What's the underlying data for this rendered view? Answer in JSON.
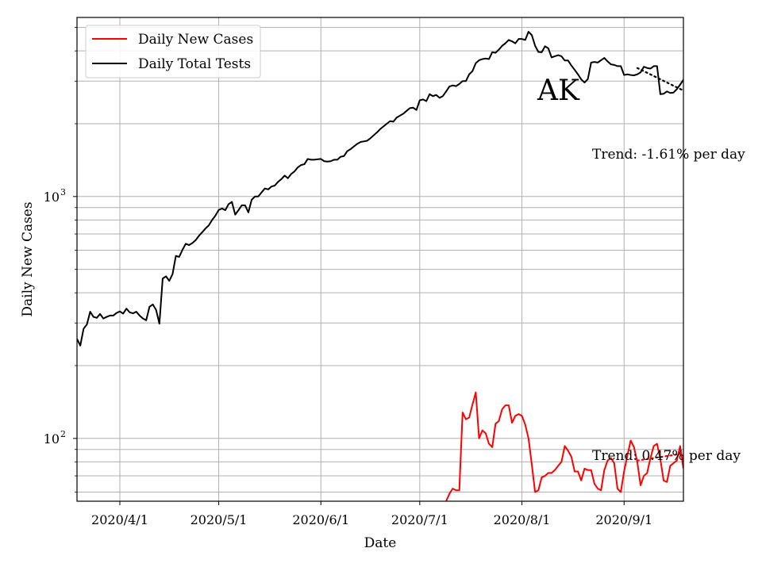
{
  "chart_data": {
    "type": "line",
    "title": "",
    "xlabel": "Date",
    "ylabel": "Daily New Cases",
    "yscale": "log",
    "ylim": [
      55,
      5500
    ],
    "xlim": [
      "2020-03-19",
      "2020-09-19"
    ],
    "grid": true,
    "legend_position": "top-left",
    "x_ticks": [
      {
        "date": "2020-04-01",
        "label": "2020/4/1"
      },
      {
        "date": "2020-05-01",
        "label": "2020/5/1"
      },
      {
        "date": "2020-06-01",
        "label": "2020/6/1"
      },
      {
        "date": "2020-07-01",
        "label": "2020/7/1"
      },
      {
        "date": "2020-08-01",
        "label": "2020/8/1"
      },
      {
        "date": "2020-09-01",
        "label": "2020/9/1"
      }
    ],
    "y_major_ticks": [
      {
        "value": 100,
        "label": "10",
        "exp": "2"
      },
      {
        "value": 1000,
        "label": "10",
        "exp": "3"
      }
    ],
    "y_minor_ticks": [
      60,
      70,
      80,
      90,
      200,
      300,
      400,
      500,
      600,
      700,
      800,
      900,
      2000,
      3000,
      4000,
      5000
    ],
    "state_label": "AK",
    "annotations": [
      {
        "text": "Trend: -1.61% per day",
        "series": "tests"
      },
      {
        "text": "Trend: 0.47% per day",
        "series": "cases"
      }
    ],
    "series": [
      {
        "key": "cases",
        "name": "Daily New Cases",
        "color": "#ff0000",
        "points": [
          [
            "2020-07-09",
            55
          ],
          [
            "2020-07-10",
            59
          ],
          [
            "2020-07-11",
            62
          ],
          [
            "2020-07-12",
            61
          ],
          [
            "2020-07-13",
            61
          ],
          [
            "2020-07-14",
            128
          ],
          [
            "2020-07-15",
            120
          ],
          [
            "2020-07-16",
            122
          ],
          [
            "2020-07-17",
            138
          ],
          [
            "2020-07-18",
            155
          ],
          [
            "2020-07-19",
            100
          ],
          [
            "2020-07-20",
            108
          ],
          [
            "2020-07-21",
            105
          ],
          [
            "2020-07-22",
            95
          ],
          [
            "2020-07-23",
            92
          ],
          [
            "2020-07-24",
            115
          ],
          [
            "2020-07-25",
            118
          ],
          [
            "2020-07-26",
            132
          ],
          [
            "2020-07-27",
            137
          ],
          [
            "2020-07-28",
            137
          ],
          [
            "2020-07-29",
            116
          ],
          [
            "2020-07-30",
            124
          ],
          [
            "2020-07-31",
            126
          ],
          [
            "2020-08-01",
            124
          ],
          [
            "2020-08-02",
            114
          ],
          [
            "2020-08-03",
            100
          ],
          [
            "2020-08-04",
            78
          ],
          [
            "2020-08-05",
            60
          ],
          [
            "2020-08-06",
            61
          ],
          [
            "2020-08-07",
            69
          ],
          [
            "2020-08-08",
            70
          ],
          [
            "2020-08-09",
            72
          ],
          [
            "2020-08-10",
            72
          ],
          [
            "2020-08-11",
            74
          ],
          [
            "2020-08-12",
            77
          ],
          [
            "2020-08-13",
            80
          ],
          [
            "2020-08-14",
            93
          ],
          [
            "2020-08-15",
            89
          ],
          [
            "2020-08-16",
            84
          ],
          [
            "2020-08-17",
            73
          ],
          [
            "2020-08-18",
            73
          ],
          [
            "2020-08-19",
            67
          ],
          [
            "2020-08-20",
            75
          ],
          [
            "2020-08-21",
            74
          ],
          [
            "2020-08-22",
            74
          ],
          [
            "2020-08-23",
            65
          ],
          [
            "2020-08-24",
            62
          ],
          [
            "2020-08-25",
            61
          ],
          [
            "2020-08-26",
            74
          ],
          [
            "2020-08-27",
            81
          ],
          [
            "2020-08-28",
            83
          ],
          [
            "2020-08-29",
            79
          ],
          [
            "2020-08-30",
            62
          ],
          [
            "2020-08-31",
            60
          ],
          [
            "2020-09-01",
            73
          ],
          [
            "2020-09-02",
            85
          ],
          [
            "2020-09-03",
            98
          ],
          [
            "2020-09-04",
            92
          ],
          [
            "2020-09-05",
            80
          ],
          [
            "2020-09-06",
            64
          ],
          [
            "2020-09-07",
            70
          ],
          [
            "2020-09-08",
            72
          ],
          [
            "2020-09-09",
            83
          ],
          [
            "2020-09-10",
            93
          ],
          [
            "2020-09-11",
            95
          ],
          [
            "2020-09-12",
            82
          ],
          [
            "2020-09-13",
            67
          ],
          [
            "2020-09-14",
            66
          ],
          [
            "2020-09-15",
            77
          ],
          [
            "2020-09-16",
            79
          ],
          [
            "2020-09-17",
            81
          ],
          [
            "2020-09-18",
            93
          ],
          [
            "2020-09-19",
            75
          ]
        ]
      },
      {
        "key": "tests",
        "name": "Daily Total Tests",
        "color": "#000000",
        "points": [
          [
            "2020-03-19",
            258
          ],
          [
            "2020-03-20",
            242
          ],
          [
            "2020-03-21",
            284
          ],
          [
            "2020-03-22",
            296
          ],
          [
            "2020-03-23",
            334
          ],
          [
            "2020-03-24",
            318
          ],
          [
            "2020-03-25",
            315
          ],
          [
            "2020-03-26",
            327
          ],
          [
            "2020-03-27",
            313
          ],
          [
            "2020-03-28",
            318
          ],
          [
            "2020-03-29",
            322
          ],
          [
            "2020-03-30",
            322
          ],
          [
            "2020-03-31",
            330
          ],
          [
            "2020-04-01",
            335
          ],
          [
            "2020-04-02",
            328
          ],
          [
            "2020-04-03",
            344
          ],
          [
            "2020-04-04",
            332
          ],
          [
            "2020-04-05",
            329
          ],
          [
            "2020-04-06",
            334
          ],
          [
            "2020-04-07",
            322
          ],
          [
            "2020-04-08",
            313
          ],
          [
            "2020-04-09",
            308
          ],
          [
            "2020-04-10",
            350
          ],
          [
            "2020-04-11",
            358
          ],
          [
            "2020-04-12",
            340
          ],
          [
            "2020-04-13",
            298
          ],
          [
            "2020-04-14",
            458
          ],
          [
            "2020-04-15",
            468
          ],
          [
            "2020-04-16",
            448
          ],
          [
            "2020-04-17",
            478
          ],
          [
            "2020-04-18",
            568
          ],
          [
            "2020-04-19",
            563
          ],
          [
            "2020-04-20",
            602
          ],
          [
            "2020-04-21",
            638
          ],
          [
            "2020-04-22",
            630
          ],
          [
            "2020-04-23",
            642
          ],
          [
            "2020-04-24",
            660
          ],
          [
            "2020-04-25",
            688
          ],
          [
            "2020-04-26",
            712
          ],
          [
            "2020-04-27",
            738
          ],
          [
            "2020-04-28",
            760
          ],
          [
            "2020-04-29",
            800
          ],
          [
            "2020-04-30",
            834
          ],
          [
            "2020-05-01",
            880
          ],
          [
            "2020-05-02",
            892
          ],
          [
            "2020-05-03",
            878
          ],
          [
            "2020-05-04",
            930
          ],
          [
            "2020-05-05",
            950
          ],
          [
            "2020-05-06",
            842
          ],
          [
            "2020-05-07",
            878
          ],
          [
            "2020-05-08",
            920
          ],
          [
            "2020-05-09",
            920
          ],
          [
            "2020-05-10",
            860
          ],
          [
            "2020-05-11",
            970
          ],
          [
            "2020-05-12",
            1000
          ],
          [
            "2020-05-13",
            1000
          ],
          [
            "2020-05-14",
            1040
          ],
          [
            "2020-05-15",
            1080
          ],
          [
            "2020-05-16",
            1070
          ],
          [
            "2020-05-17",
            1100
          ],
          [
            "2020-05-18",
            1110
          ],
          [
            "2020-05-19",
            1150
          ],
          [
            "2020-05-20",
            1180
          ],
          [
            "2020-05-21",
            1220
          ],
          [
            "2020-05-22",
            1190
          ],
          [
            "2020-05-23",
            1240
          ],
          [
            "2020-05-24",
            1270
          ],
          [
            "2020-05-25",
            1320
          ],
          [
            "2020-05-26",
            1350
          ],
          [
            "2020-05-27",
            1360
          ],
          [
            "2020-05-28",
            1430
          ],
          [
            "2020-05-29",
            1420
          ],
          [
            "2020-05-30",
            1420
          ],
          [
            "2020-05-31",
            1425
          ],
          [
            "2020-06-01",
            1430
          ],
          [
            "2020-06-02",
            1400
          ],
          [
            "2020-06-03",
            1395
          ],
          [
            "2020-06-04",
            1400
          ],
          [
            "2020-06-05",
            1420
          ],
          [
            "2020-06-06",
            1420
          ],
          [
            "2020-06-07",
            1460
          ],
          [
            "2020-06-08",
            1470
          ],
          [
            "2020-06-09",
            1540
          ],
          [
            "2020-06-10",
            1570
          ],
          [
            "2020-06-11",
            1610
          ],
          [
            "2020-06-12",
            1650
          ],
          [
            "2020-06-13",
            1680
          ],
          [
            "2020-06-14",
            1690
          ],
          [
            "2020-06-15",
            1700
          ],
          [
            "2020-06-16",
            1740
          ],
          [
            "2020-06-17",
            1790
          ],
          [
            "2020-06-18",
            1840
          ],
          [
            "2020-06-19",
            1900
          ],
          [
            "2020-06-20",
            1950
          ],
          [
            "2020-06-21",
            2000
          ],
          [
            "2020-06-22",
            2050
          ],
          [
            "2020-06-23",
            2040
          ],
          [
            "2020-06-24",
            2120
          ],
          [
            "2020-06-25",
            2160
          ],
          [
            "2020-06-26",
            2200
          ],
          [
            "2020-06-27",
            2260
          ],
          [
            "2020-06-28",
            2320
          ],
          [
            "2020-06-29",
            2330
          ],
          [
            "2020-06-30",
            2280
          ],
          [
            "2020-07-01",
            2500
          ],
          [
            "2020-07-02",
            2520
          ],
          [
            "2020-07-03",
            2480
          ],
          [
            "2020-07-04",
            2650
          ],
          [
            "2020-07-05",
            2600
          ],
          [
            "2020-07-06",
            2630
          ],
          [
            "2020-07-07",
            2560
          ],
          [
            "2020-07-08",
            2600
          ],
          [
            "2020-07-09",
            2720
          ],
          [
            "2020-07-10",
            2850
          ],
          [
            "2020-07-11",
            2880
          ],
          [
            "2020-07-12",
            2860
          ],
          [
            "2020-07-13",
            2920
          ],
          [
            "2020-07-14",
            3000
          ],
          [
            "2020-07-15",
            3000
          ],
          [
            "2020-07-16",
            3200
          ],
          [
            "2020-07-17",
            3300
          ],
          [
            "2020-07-18",
            3560
          ],
          [
            "2020-07-19",
            3660
          ],
          [
            "2020-07-20",
            3700
          ],
          [
            "2020-07-21",
            3720
          ],
          [
            "2020-07-22",
            3700
          ],
          [
            "2020-07-23",
            3950
          ],
          [
            "2020-07-24",
            3930
          ],
          [
            "2020-07-25",
            4050
          ],
          [
            "2020-07-26",
            4200
          ],
          [
            "2020-07-27",
            4300
          ],
          [
            "2020-07-28",
            4440
          ],
          [
            "2020-07-29",
            4380
          ],
          [
            "2020-07-30",
            4300
          ],
          [
            "2020-07-31",
            4480
          ],
          [
            "2020-08-01",
            4480
          ],
          [
            "2020-08-02",
            4440
          ],
          [
            "2020-08-03",
            4800
          ],
          [
            "2020-08-04",
            4650
          ],
          [
            "2020-08-05",
            4200
          ],
          [
            "2020-08-06",
            3960
          ],
          [
            "2020-08-07",
            3950
          ],
          [
            "2020-08-08",
            4180
          ],
          [
            "2020-08-09",
            4100
          ],
          [
            "2020-08-10",
            3760
          ],
          [
            "2020-08-11",
            3800
          ],
          [
            "2020-08-12",
            3840
          ],
          [
            "2020-08-13",
            3800
          ],
          [
            "2020-08-14",
            3650
          ],
          [
            "2020-08-15",
            3650
          ],
          [
            "2020-08-16",
            3480
          ],
          [
            "2020-08-17",
            3340
          ],
          [
            "2020-08-18",
            3200
          ],
          [
            "2020-08-19",
            3050
          ],
          [
            "2020-08-20",
            2960
          ],
          [
            "2020-08-21",
            3060
          ],
          [
            "2020-08-22",
            3580
          ],
          [
            "2020-08-23",
            3600
          ],
          [
            "2020-08-24",
            3580
          ],
          [
            "2020-08-25",
            3660
          ],
          [
            "2020-08-26",
            3740
          ],
          [
            "2020-08-27",
            3620
          ],
          [
            "2020-08-28",
            3520
          ],
          [
            "2020-08-29",
            3500
          ],
          [
            "2020-08-30",
            3460
          ],
          [
            "2020-08-31",
            3460
          ],
          [
            "2020-09-01",
            3180
          ],
          [
            "2020-09-02",
            3200
          ],
          [
            "2020-09-03",
            3180
          ],
          [
            "2020-09-04",
            3170
          ],
          [
            "2020-09-05",
            3200
          ],
          [
            "2020-09-06",
            3260
          ],
          [
            "2020-09-07",
            3440
          ],
          [
            "2020-09-08",
            3400
          ],
          [
            "2020-09-09",
            3380
          ],
          [
            "2020-09-10",
            3460
          ],
          [
            "2020-09-11",
            3460
          ],
          [
            "2020-09-12",
            2650
          ],
          [
            "2020-09-13",
            2660
          ],
          [
            "2020-09-14",
            2720
          ],
          [
            "2020-09-15",
            2680
          ],
          [
            "2020-09-16",
            2690
          ],
          [
            "2020-09-17",
            2780
          ],
          [
            "2020-09-18",
            2900
          ],
          [
            "2020-09-19",
            3040
          ],
          [
            "2020-09-20",
            3180
          ]
        ]
      }
    ],
    "trend_lines": [
      {
        "series": "tests",
        "style": "dotted",
        "color": "#000000",
        "points": [
          [
            "2020-09-05",
            3400
          ],
          [
            "2020-09-20",
            2700
          ]
        ]
      },
      {
        "series": "cases",
        "style": "dotted",
        "color": "#ff0000",
        "points": [
          [
            "2020-09-05",
            81
          ],
          [
            "2020-09-20",
            87
          ]
        ]
      }
    ]
  }
}
